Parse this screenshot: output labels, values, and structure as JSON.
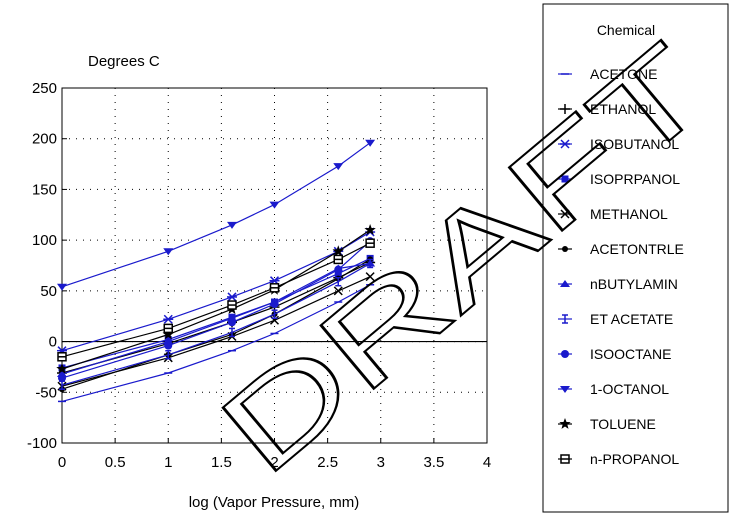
{
  "chart_data": {
    "type": "line",
    "title": "",
    "ylabel": "Degrees C",
    "xlabel": "log (Vapor Pressure, mm)",
    "xlim": [
      0,
      4
    ],
    "ylim": [
      -100,
      250
    ],
    "xticks": [
      "0",
      "0.5",
      "1",
      "1.5",
      "2",
      "2.5",
      "3",
      "3.5",
      "4"
    ],
    "yticks": [
      "250",
      "200",
      "150",
      "100",
      "50",
      "0",
      "-50",
      "-100"
    ],
    "grid": true,
    "legend_title": "Chemical",
    "legend_position": "right",
    "x": [
      0,
      1,
      1.6,
      2,
      2.6,
      2.9
    ],
    "series": [
      {
        "name": "ACETONE",
        "marker": "dash",
        "color": "#1a1acc",
        "values": [
          -59,
          -31,
          -9,
          8,
          39,
          56
        ]
      },
      {
        "name": "ETHANOL",
        "marker": "plus",
        "color": "#000000",
        "values": [
          -31,
          -2,
          19,
          34,
          63,
          78
        ]
      },
      {
        "name": "ISOBUTANOL",
        "marker": "asterisk",
        "color": "#1a1acc",
        "values": [
          -9,
          22,
          44,
          60,
          89,
          108
        ]
      },
      {
        "name": "ISOPRPANOL",
        "marker": "square",
        "color": "#1a1acc",
        "values": [
          -26,
          2,
          24,
          39,
          67,
          82
        ]
      },
      {
        "name": "METHANOL",
        "marker": "x",
        "color": "#000000",
        "values": [
          -44,
          -16,
          5,
          21,
          50,
          64
        ]
      },
      {
        "name": "ACETONTRLE",
        "marker": "dot",
        "color": "#000000",
        "values": [
          -47,
          -13,
          7,
          27,
          62,
          81
        ]
      },
      {
        "name": "nBUTYLAMIN",
        "marker": "triangle",
        "color": "#1a1acc",
        "values": [
          -32,
          0,
          23,
          39,
          72,
          77
        ]
      },
      {
        "name": "ET ACETATE",
        "marker": "ibeam",
        "color": "#1a1acc",
        "values": [
          -43,
          -13,
          9,
          27,
          59,
          77
        ]
      },
      {
        "name": "ISOOCTANE",
        "marker": "circle",
        "color": "#1a1acc",
        "values": [
          -36,
          -4,
          19,
          37,
          71,
          99
        ]
      },
      {
        "name": "1-OCTANOL",
        "marker": "triangle-down",
        "color": "#1a1acc",
        "values": [
          54,
          89,
          115,
          135,
          173,
          196
        ]
      },
      {
        "name": "TOLUENE",
        "marker": "star",
        "color": "#000000",
        "values": [
          -27,
          7,
          32,
          51,
          89,
          110
        ]
      },
      {
        "name": "n-PROPANOL",
        "marker": "square-open",
        "color": "#000000",
        "values": [
          -15,
          13,
          36,
          53,
          81,
          97
        ]
      }
    ]
  },
  "watermark": "DRAFT"
}
